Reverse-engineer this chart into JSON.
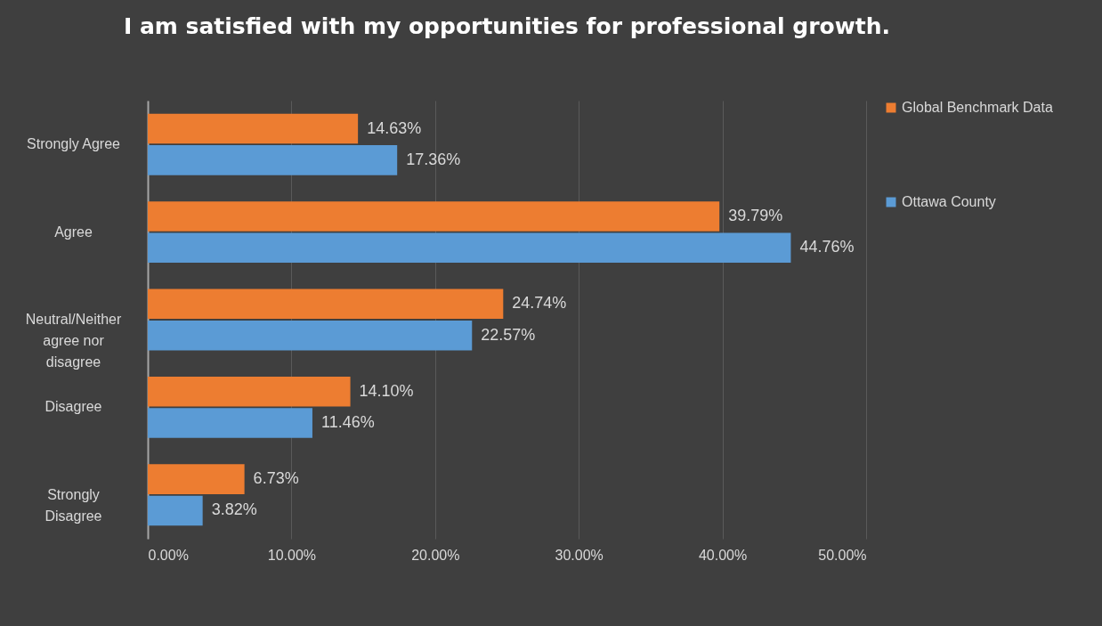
{
  "chart_data": {
    "type": "bar",
    "orientation": "horizontal",
    "title": "I am satisfied with my opportunities for professional growth.",
    "categories": [
      "Strongly Agree",
      "Agree",
      "Neutral/Neither agree nor disagree",
      "Disagree",
      "Strongly Disagree"
    ],
    "series": [
      {
        "name": "Global Benchmark Data",
        "color": "#ed7d31",
        "values": [
          14.63,
          39.79,
          24.74,
          14.1,
          6.73
        ],
        "value_labels": [
          "14.63%",
          "39.79%",
          "24.74%",
          "14.10%",
          "6.73%"
        ]
      },
      {
        "name": "Ottawa County",
        "color": "#5b9bd5",
        "values": [
          17.36,
          44.76,
          22.57,
          11.46,
          3.82
        ],
        "value_labels": [
          "17.36%",
          "44.76%",
          "22.57%",
          "11.46%",
          "3.82%"
        ]
      }
    ],
    "xlim": [
      0,
      50
    ],
    "xticks": [
      {
        "value": 0,
        "label": "0.00%"
      },
      {
        "value": 10,
        "label": "10.00%"
      },
      {
        "value": 20,
        "label": "20.00%"
      },
      {
        "value": 30,
        "label": "30.00%"
      },
      {
        "value": 40,
        "label": "40.00%"
      },
      {
        "value": 50,
        "label": "50.00%"
      }
    ],
    "grid": "x",
    "legend": "right"
  }
}
